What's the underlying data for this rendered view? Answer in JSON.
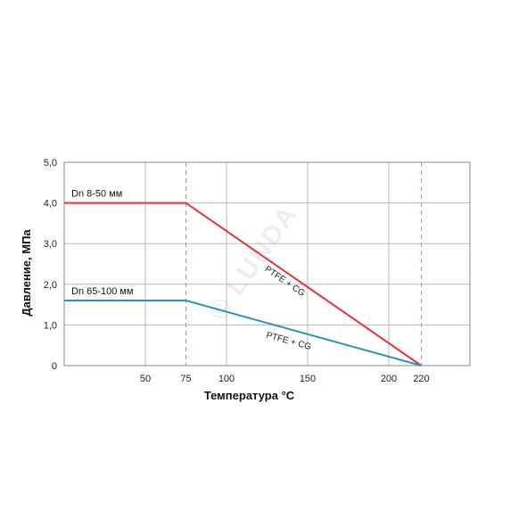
{
  "chart_data": {
    "type": "line",
    "xlabel": "Температура °С",
    "ylabel": "Давление, МПа",
    "xlim": [
      0,
      250
    ],
    "ylim": [
      0,
      5
    ],
    "grid": true,
    "x_ticks": [
      {
        "value": 50,
        "label": "50"
      },
      {
        "value": 75,
        "label": "75"
      },
      {
        "value": 100,
        "label": "100"
      },
      {
        "value": 150,
        "label": "150"
      },
      {
        "value": 200,
        "label": "200"
      },
      {
        "value": 220,
        "label": "220"
      }
    ],
    "y_ticks": [
      {
        "value": 0,
        "label": "0"
      },
      {
        "value": 1,
        "label": "1,0"
      },
      {
        "value": 2,
        "label": "2,0"
      },
      {
        "value": 3,
        "label": "3,0"
      },
      {
        "value": 4,
        "label": "4,0"
      },
      {
        "value": 5,
        "label": "5,0"
      }
    ],
    "reference_lines_x": [
      75,
      220
    ],
    "series": [
      {
        "name": "Dn 8-50 мм",
        "annotation": "PTFE + CG",
        "color": "#e8323a",
        "x": [
          0,
          75,
          220
        ],
        "y": [
          4.0,
          4.0,
          0
        ]
      },
      {
        "name": "Dn 65-100 мм",
        "annotation": "PTFE + CG",
        "color": "#2a93b8",
        "x": [
          0,
          75,
          220
        ],
        "y": [
          1.6,
          1.6,
          0
        ]
      }
    ]
  },
  "watermark": "© LUNDA"
}
